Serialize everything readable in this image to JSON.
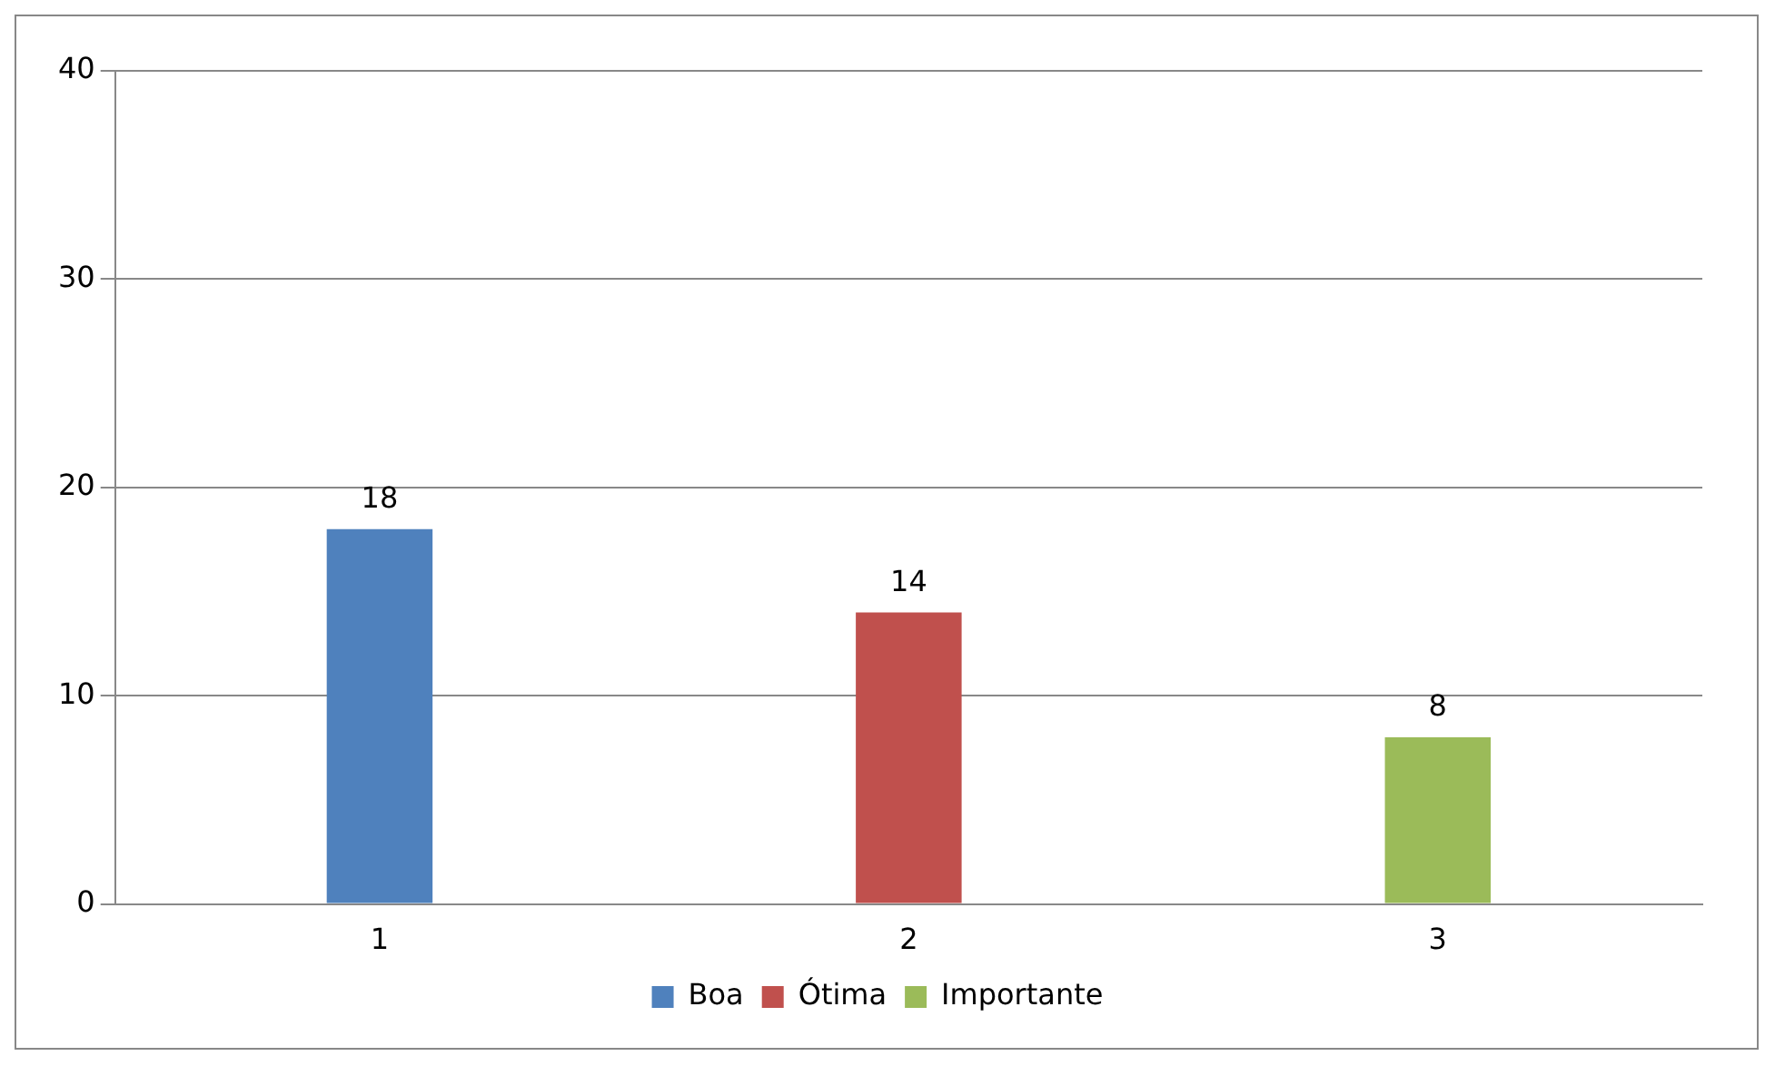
{
  "chart_data": {
    "type": "bar",
    "categories": [
      "1",
      "2",
      "3"
    ],
    "series": [
      {
        "name": "Boa",
        "color": "#4f81bd",
        "values": [
          18,
          null,
          null
        ]
      },
      {
        "name": "Ótima",
        "color": "#c0504d",
        "values": [
          null,
          14,
          null
        ]
      },
      {
        "name": "Importante",
        "color": "#9bbb59",
        "values": [
          null,
          null,
          8
        ]
      }
    ],
    "ylim": [
      0,
      40
    ],
    "yticks": [
      0,
      10,
      20,
      30,
      40
    ],
    "grid": "y",
    "legend": "bottom",
    "data_labels": true
  }
}
